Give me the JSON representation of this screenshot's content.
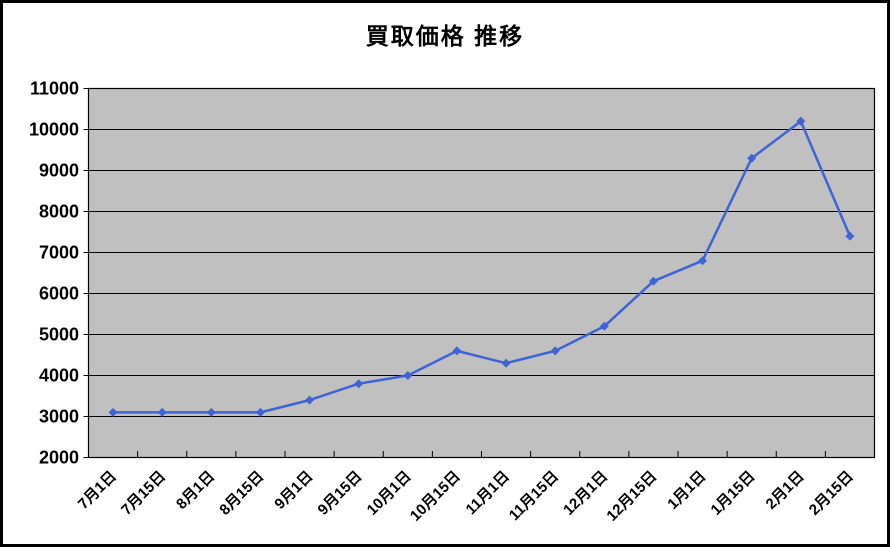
{
  "window": {
    "background_color": "#FFFFFF",
    "border_color": "#000000"
  },
  "chart_data": {
    "type": "line",
    "title": "買取価格 推移",
    "categories": [
      "7月1日",
      "7月15日",
      "8月1日",
      "8月15日",
      "9月1日",
      "9月15日",
      "10月1日",
      "10月15日",
      "11月1日",
      "11月15日",
      "12月1日",
      "12月15日",
      "1月1日",
      "1月15日",
      "2月1日",
      "2月15日"
    ],
    "series": [
      {
        "name": "買取価格",
        "values": [
          3100,
          3100,
          3100,
          3100,
          3400,
          3800,
          4000,
          4600,
          4300,
          4600,
          5200,
          6300,
          6800,
          9300,
          10200,
          7400
        ],
        "color": "#4063D6",
        "marker": "diamond"
      }
    ],
    "xlabel": "",
    "ylabel": "",
    "ylim": [
      2000,
      11000
    ],
    "ytick_step": 1000,
    "y_ticks": [
      2000,
      3000,
      4000,
      5000,
      6000,
      7000,
      8000,
      9000,
      10000,
      11000
    ],
    "grid": "horizontal",
    "gridline_color": "#000000",
    "axis_color": "#000000",
    "plot_bg": "#C0C0C0",
    "legend": "none",
    "x_label_rotation": -45
  }
}
